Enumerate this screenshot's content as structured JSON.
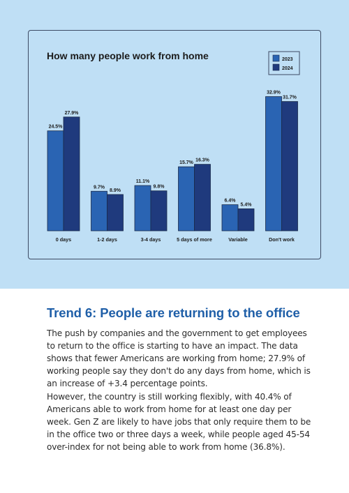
{
  "colors": {
    "band_background": "#bfdff5",
    "series_2023": "#2a64b3",
    "series_2024": "#1f3a7d",
    "heading": "#1f5fa8"
  },
  "chart_data": {
    "type": "bar",
    "title": "How many people work from home",
    "xlabel": "",
    "ylabel": "",
    "categories": [
      "0 days",
      "1-2 days",
      "3-4 days",
      "5 days of more",
      "Variable",
      "Don't work"
    ],
    "series": [
      {
        "name": "2023",
        "values": [
          24.5,
          9.7,
          11.1,
          15.7,
          6.4,
          32.9
        ],
        "labels": [
          "24.5%",
          "9.7%",
          "11.1%",
          "15.7%",
          "6.4%",
          "32.9%"
        ]
      },
      {
        "name": "2024",
        "values": [
          27.9,
          8.9,
          9.8,
          16.3,
          5.4,
          31.7
        ],
        "labels": [
          "27.9%",
          "8.9%",
          "9.8%",
          "16.3%",
          "5.4%",
          "31.7%"
        ]
      }
    ],
    "ylim": [
      0,
      35
    ],
    "grid": false,
    "legend_position": "top-right"
  },
  "article": {
    "heading": "Trend 6: People are returning to the office",
    "paragraphs": [
      "The push by companies and the government to get employees to return to the office is starting to have an impact. The data shows that fewer Americans are working from home; 27.9% of working people say they don't do any days from home, which is an increase of +3.4 percentage points.",
      "However, the country is still working flexibly, with 40.4% of Americans able to work from home for at least one day per week. Gen Z are likely to have jobs that only require them to be in the office two or three days a week, while people aged 45-54 over-index for not being able to work from home (36.8%)."
    ]
  }
}
